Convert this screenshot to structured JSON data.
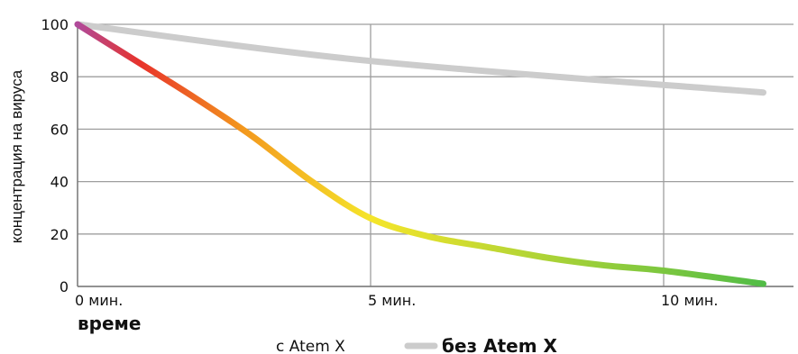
{
  "chart_data": {
    "type": "line",
    "ylabel": "концентрация на вируса",
    "xlabel": "време",
    "ylim": [
      0,
      100
    ],
    "xlim": [
      0,
      11.8
    ],
    "y_ticks": [
      0,
      20,
      40,
      60,
      80,
      100
    ],
    "x_ticks": [
      {
        "value": 0,
        "label": "0 мин."
      },
      {
        "value": 5,
        "label": "5 мин."
      },
      {
        "value": 10,
        "label": "10 мин."
      }
    ],
    "grid": true,
    "legend_position": "bottom",
    "series": [
      {
        "name": "с Atem X",
        "style": "gradient",
        "gradient_colors": [
          "#b04a9a",
          "#e8332a",
          "#f39a1e",
          "#f5e52a",
          "#4cbb47"
        ],
        "x": [
          0,
          1,
          2,
          3,
          4,
          5,
          6,
          7,
          8,
          9,
          10,
          11.7
        ],
        "y": [
          100,
          86,
          72,
          57,
          40,
          26,
          19,
          15,
          11,
          8,
          6,
          1
        ]
      },
      {
        "name": "без Atem X",
        "style": "solid",
        "color": "#cccccc",
        "x": [
          0,
          5,
          11.7
        ],
        "y": [
          100,
          86,
          74
        ]
      }
    ]
  }
}
